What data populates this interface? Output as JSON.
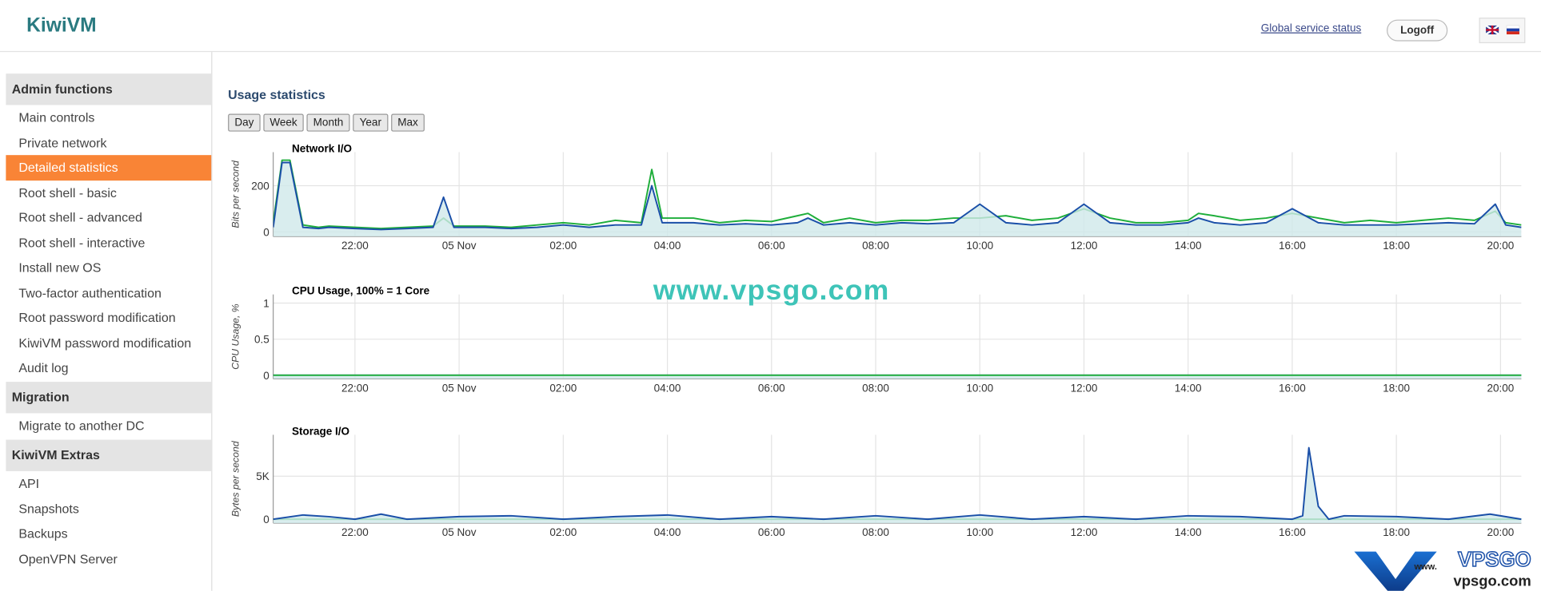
{
  "header": {
    "logo": "KiwiVM",
    "status_link": "Global service status",
    "logoff": "Logoff"
  },
  "sidebar": [
    {
      "heading": "Admin functions",
      "items": [
        "Main controls",
        "Private network",
        "Detailed statistics",
        "Root shell - basic",
        "Root shell - advanced",
        "Root shell - interactive",
        "Install new OS",
        "Two-factor authentication",
        "Root password modification",
        "KiwiVM password modification",
        "Audit log"
      ]
    },
    {
      "heading": "Migration",
      "items": [
        "Migrate to another DC"
      ]
    },
    {
      "heading": "KiwiVM Extras",
      "items": [
        "API",
        "Snapshots",
        "Backups",
        "OpenVPN Server"
      ]
    }
  ],
  "content": {
    "title": "Usage statistics",
    "buttons": [
      "Day",
      "Week",
      "Month",
      "Year",
      "Max"
    ]
  },
  "watermark": {
    "center": "www.vpsgo.com",
    "logo": "VPSGO",
    "logo_prefix": "www.",
    "logo_url": "vpsgo.com"
  },
  "chart_data": [
    {
      "type": "line",
      "title": "Network I/O",
      "y_label": "Bits per second",
      "x": [
        20.43,
        20.6,
        20.75,
        21.0,
        21.3,
        21.5,
        22.0,
        22.5,
        23.0,
        23.5,
        23.7,
        23.9,
        24.5,
        25.0,
        25.5,
        26.0,
        26.5,
        27.0,
        27.5,
        27.7,
        27.9,
        28.5,
        29.0,
        29.5,
        30.0,
        30.5,
        30.7,
        31.0,
        31.5,
        32.0,
        32.5,
        33.0,
        33.5,
        34.0,
        34.5,
        35.0,
        35.5,
        36.0,
        36.5,
        37.0,
        37.5,
        38.0,
        38.2,
        38.5,
        39.0,
        39.5,
        40.0,
        40.5,
        41.0,
        41.5,
        42.0,
        42.5,
        43.0,
        43.5,
        43.9,
        44.1,
        44.4
      ],
      "series": [
        {
          "color": "#1fae3b",
          "values": [
            40,
            310,
            310,
            30,
            20,
            25,
            20,
            15,
            20,
            25,
            60,
            25,
            25,
            20,
            30,
            40,
            30,
            50,
            40,
            270,
            60,
            60,
            40,
            50,
            45,
            70,
            80,
            40,
            60,
            40,
            50,
            50,
            60,
            60,
            70,
            50,
            60,
            100,
            60,
            40,
            40,
            50,
            80,
            70,
            50,
            60,
            80,
            60,
            40,
            50,
            40,
            50,
            60,
            50,
            90,
            40,
            30
          ]
        },
        {
          "color": "#1a4fa8",
          "values": [
            20,
            300,
            300,
            20,
            15,
            20,
            15,
            10,
            15,
            20,
            150,
            20,
            20,
            15,
            20,
            30,
            20,
            30,
            30,
            200,
            40,
            40,
            30,
            35,
            30,
            40,
            60,
            30,
            40,
            30,
            40,
            35,
            40,
            120,
            40,
            30,
            40,
            120,
            40,
            30,
            30,
            40,
            60,
            40,
            30,
            40,
            100,
            40,
            30,
            30,
            30,
            35,
            40,
            35,
            120,
            30,
            20
          ]
        }
      ],
      "xlim": [
        20.43,
        44.4
      ],
      "ylim": [
        -20,
        345
      ],
      "yticks": [
        0,
        200
      ],
      "xticks": [
        {
          "value": 22,
          "label": "22:00"
        },
        {
          "value": 24,
          "label": "05 Nov"
        },
        {
          "value": 26,
          "label": "02:00"
        },
        {
          "value": 28,
          "label": "04:00"
        },
        {
          "value": 30,
          "label": "06:00"
        },
        {
          "value": 32,
          "label": "08:00"
        },
        {
          "value": 34,
          "label": "10:00"
        },
        {
          "value": 36,
          "label": "12:00"
        },
        {
          "value": 38,
          "label": "14:00"
        },
        {
          "value": 40,
          "label": "16:00"
        },
        {
          "value": 42,
          "label": "18:00"
        },
        {
          "value": 44,
          "label": "20:00"
        }
      ],
      "grid": true
    },
    {
      "type": "line",
      "title": "CPU Usage, 100% = 1 Core",
      "y_label": "CPU Usage, %",
      "x": [
        20.43,
        44.4
      ],
      "series": [
        {
          "color": "#1a4fa8",
          "values": [
            0,
            0
          ]
        },
        {
          "color": "#1fae3b",
          "values": [
            0,
            0
          ]
        }
      ],
      "xlim": [
        20.43,
        44.4
      ],
      "ylim": [
        -0.05,
        1.12
      ],
      "yticks": [
        0,
        0.5,
        1
      ],
      "xticks": [
        {
          "value": 22,
          "label": "22:00"
        },
        {
          "value": 24,
          "label": "05 Nov"
        },
        {
          "value": 26,
          "label": "02:00"
        },
        {
          "value": 28,
          "label": "04:00"
        },
        {
          "value": 30,
          "label": "06:00"
        },
        {
          "value": 32,
          "label": "08:00"
        },
        {
          "value": 34,
          "label": "10:00"
        },
        {
          "value": 36,
          "label": "12:00"
        },
        {
          "value": 38,
          "label": "14:00"
        },
        {
          "value": 40,
          "label": "16:00"
        },
        {
          "value": 42,
          "label": "18:00"
        },
        {
          "value": 44,
          "label": "20:00"
        }
      ],
      "grid": true
    },
    {
      "type": "line",
      "title": "Storage I/O",
      "y_label": "Bytes per second",
      "x": [
        20.43,
        21.0,
        21.5,
        22.0,
        22.5,
        23.0,
        24.0,
        25.0,
        26.0,
        27.0,
        28.0,
        29.0,
        30.0,
        31.0,
        32.0,
        33.0,
        34.0,
        35.0,
        36.0,
        37.0,
        38.0,
        39.0,
        40.0,
        40.2,
        40.32,
        40.5,
        40.7,
        41.0,
        42.0,
        43.0,
        43.8,
        44.4
      ],
      "series": [
        {
          "color": "#1fae3b",
          "values": [
            0,
            0,
            0,
            0,
            0,
            0,
            0,
            0,
            0,
            0,
            0,
            0,
            0,
            0,
            0,
            0,
            0,
            0,
            0,
            0,
            0,
            0,
            0,
            0,
            0,
            0,
            0,
            0,
            0,
            0,
            0,
            0
          ]
        },
        {
          "color": "#1a4fa8",
          "values": [
            0,
            500,
            300,
            0,
            600,
            0,
            300,
            400,
            0,
            300,
            500,
            0,
            300,
            0,
            400,
            0,
            500,
            0,
            300,
            0,
            400,
            300,
            0,
            400,
            8300,
            1500,
            0,
            400,
            300,
            0,
            600,
            0
          ]
        }
      ],
      "xlim": [
        20.43,
        44.4
      ],
      "ylim": [
        -450,
        9800
      ],
      "yticks": [
        0,
        {
          "value": 5000,
          "label": "5K"
        }
      ],
      "xticks": [
        {
          "value": 22,
          "label": "22:00"
        },
        {
          "value": 24,
          "label": "05 Nov"
        },
        {
          "value": 26,
          "label": "02:00"
        },
        {
          "value": 28,
          "label": "04:00"
        },
        {
          "value": 30,
          "label": "06:00"
        },
        {
          "value": 32,
          "label": "08:00"
        },
        {
          "value": 34,
          "label": "10:00"
        },
        {
          "value": 36,
          "label": "12:00"
        },
        {
          "value": 38,
          "label": "14:00"
        },
        {
          "value": 40,
          "label": "16:00"
        },
        {
          "value": 42,
          "label": "18:00"
        },
        {
          "value": 44,
          "label": "20:00"
        }
      ],
      "grid": true
    }
  ]
}
